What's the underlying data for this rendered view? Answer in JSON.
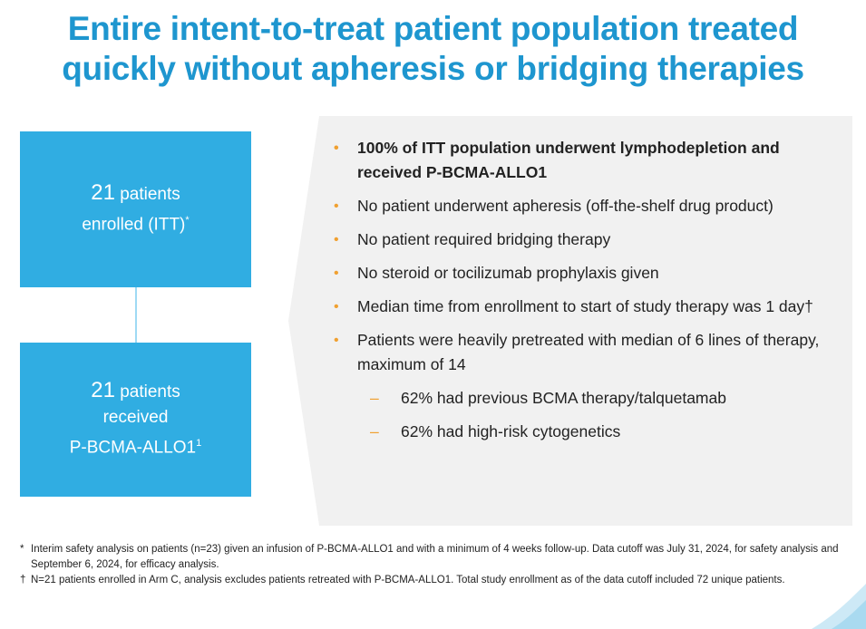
{
  "title": {
    "line1": "Entire intent-to-treat patient population treated",
    "line2": "quickly without apheresis or bridging therapies"
  },
  "flow": {
    "box1": {
      "number": "21",
      "line1": "patients",
      "line2": "enrolled (ITT)",
      "mark": "*"
    },
    "box2": {
      "number": "21",
      "line1": "patients",
      "line2": "received",
      "line3": "P-BCMA-ALLO1",
      "mark": "1"
    }
  },
  "bullets": [
    {
      "text": "100% of ITT population underwent lymphodepletion and received P-BCMA-ALLO1"
    },
    {
      "text": "No patient underwent apheresis (off-the-shelf drug product)"
    },
    {
      "text": "No patient required bridging therapy"
    },
    {
      "text": "No steroid or tocilizumab prophylaxis given"
    },
    {
      "text": "Median time from enrollment to start of study therapy was 1 day†"
    },
    {
      "text": "Patients were heavily pretreated with median of 6 lines of therapy, maximum of 14"
    }
  ],
  "sub_bullets": [
    {
      "text": "62% had previous BCMA therapy/talquetamab"
    },
    {
      "text": "62% had high-risk cytogenetics"
    }
  ],
  "footnotes": [
    {
      "mark": "*",
      "text": "Interim safety analysis on patients (n=23) given an infusion of P-BCMA-ALLO1 and with a minimum of 4 weeks follow-up. Data cutoff was July 31, 2024, for safety analysis and September 6, 2024, for efficacy analysis."
    },
    {
      "mark": "†",
      "text": "N=21 patients enrolled in Arm C, analysis excludes patients retreated with P-BCMA-ALLO1. Total study enrollment as of the data cutoff included 72 unique patients."
    }
  ],
  "colors": {
    "title": "#1e96cf",
    "box": "#30ade2",
    "bullet_marker": "#f0a030",
    "panel": "#f1f1f1"
  }
}
